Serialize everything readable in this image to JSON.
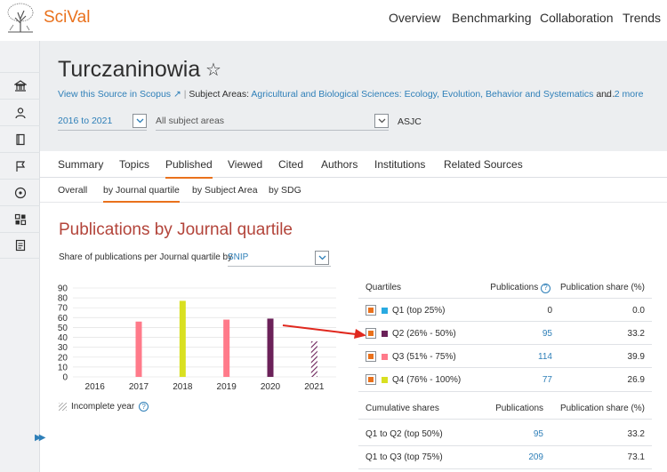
{
  "brand": {
    "name": "SciVal"
  },
  "topnav": [
    {
      "label": "Overview",
      "active": true
    },
    {
      "label": "Benchmarking",
      "active": false
    },
    {
      "label": "Collaboration",
      "active": false
    },
    {
      "label": "Trends",
      "active": false
    }
  ],
  "rail_icons": [
    "institution-icon",
    "person-icon",
    "journal-icon",
    "flag-icon",
    "topic-icon",
    "dashboard-icon",
    "report-icon"
  ],
  "header": {
    "title": "Turczaninowia",
    "source_link": "View this Source in Scopus",
    "subject_areas_label": "Subject Areas:",
    "subject_areas_value": "Agricultural and Biological Sciences: Ecology, Evolution, Behavior and Systematics",
    "and_label": "and",
    "more_link": "2 more",
    "ellipsis": "…",
    "year_range": "2016 to 2021",
    "subject_select": "All subject areas",
    "asjc": "ASJC"
  },
  "tabs": [
    {
      "label": "Summary",
      "active": false
    },
    {
      "label": "Topics",
      "active": false
    },
    {
      "label": "Published",
      "active": true
    },
    {
      "label": "Viewed",
      "active": false
    },
    {
      "label": "Cited",
      "active": false
    },
    {
      "label": "Authors",
      "active": false
    },
    {
      "label": "Institutions",
      "active": false
    },
    {
      "label": "Related Sources",
      "active": false
    }
  ],
  "subtabs": [
    {
      "label": "Overall",
      "active": false
    },
    {
      "label": "by Journal quartile",
      "active": true
    },
    {
      "label": "by Subject Area",
      "active": false
    },
    {
      "label": "by SDG",
      "active": false
    }
  ],
  "section": {
    "title": "Publications by Journal quartile",
    "share_label": "Share of publications per Journal quartile by",
    "metric": "SNIP",
    "incomplete_label": "Incomplete year"
  },
  "chart_data": {
    "type": "bar",
    "categories": [
      "2016",
      "2017",
      "2018",
      "2019",
      "2020",
      "2021"
    ],
    "values": [
      0,
      56,
      77,
      58,
      59,
      36
    ],
    "colors": [
      "#e8e8e8",
      "#ff7a8a",
      "#d9e021",
      "#ff7a8a",
      "#6b2159",
      "#6b2159"
    ],
    "hatched": [
      false,
      false,
      false,
      false,
      false,
      true
    ],
    "ylim": [
      0,
      90
    ],
    "yticks": [
      0,
      10,
      20,
      30,
      40,
      50,
      60,
      70,
      80,
      90
    ],
    "xlabel": "",
    "ylabel": "",
    "title": ""
  },
  "quartiles_table": {
    "headers": [
      "Quartiles",
      "Publications",
      "Publication share (%)"
    ],
    "rows": [
      {
        "label": "Q1 (top 25%)",
        "color": "#29aae1",
        "publications": "0",
        "share": "0.0",
        "link": false
      },
      {
        "label": "Q2 (26% - 50%)",
        "color": "#6b2159",
        "publications": "95",
        "share": "33.2",
        "link": true
      },
      {
        "label": "Q3 (51% - 75%)",
        "color": "#ff7a8a",
        "publications": "114",
        "share": "39.9",
        "link": true
      },
      {
        "label": "Q4 (76% - 100%)",
        "color": "#d9e021",
        "publications": "77",
        "share": "26.9",
        "link": true
      }
    ]
  },
  "cumulative_table": {
    "headers": [
      "Cumulative shares",
      "Publications",
      "Publication share (%)"
    ],
    "rows": [
      {
        "label": "Q1 to Q2 (top 50%)",
        "publications": "95",
        "share": "33.2"
      },
      {
        "label": "Q1 to Q3 (top 75%)",
        "publications": "209",
        "share": "73.1"
      }
    ]
  },
  "colors": {
    "accent": "#e9711c",
    "link": "#2e7fb8",
    "title_red": "#b3443a",
    "arrow": "#e0281e"
  }
}
